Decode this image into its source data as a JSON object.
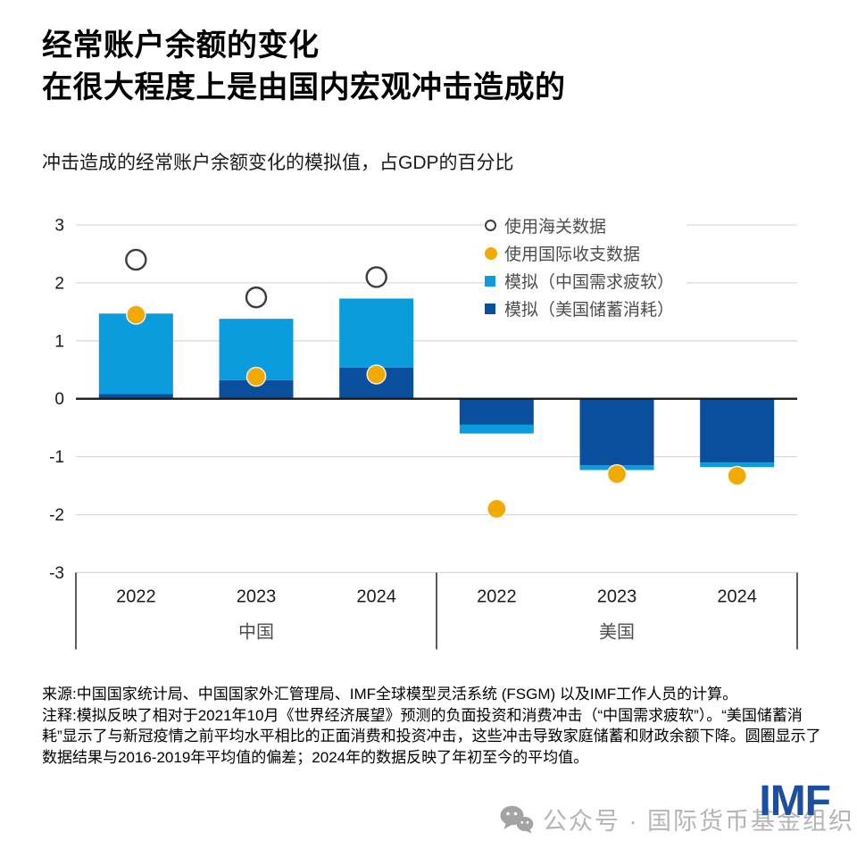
{
  "title": {
    "line1": "经常账户余额的变化",
    "line2": "在很大程度上是由国内宏观冲击造成的"
  },
  "subtitle": "冲击造成的经常账户余额变化的模拟值，占GDP的百分比",
  "legend": [
    {
      "marker": "open-circle",
      "label": "使用海关数据",
      "color": "#3c3c3c"
    },
    {
      "marker": "filled-circle",
      "label": "使用国际收支数据",
      "color": "#F2A900"
    },
    {
      "marker": "square",
      "label": "模拟（中国需求疲软）",
      "color": "#0A9CDC"
    },
    {
      "marker": "square",
      "label": "模拟（美国储蓄消耗）",
      "color": "#0A4F9E"
    }
  ],
  "chart_data": {
    "type": "bar",
    "stacked": true,
    "groups": [
      "中国",
      "美国"
    ],
    "categories": [
      "2022",
      "2023",
      "2024",
      "2022",
      "2023",
      "2024"
    ],
    "ylim": [
      -3,
      3
    ],
    "yticks": [
      "3",
      "2",
      "1",
      "0",
      "-1",
      "-2",
      "-3"
    ],
    "grid": true,
    "legend_position": "top-right",
    "series": [
      {
        "name": "模拟（美国储蓄消耗）",
        "color": "#0A4F9E",
        "values": [
          0.08,
          0.32,
          0.54,
          -0.45,
          -1.15,
          -1.1
        ]
      },
      {
        "name": "模拟（中国需求疲软）",
        "color": "#0A9CDC",
        "values": [
          1.39,
          1.06,
          1.19,
          -0.15,
          -0.08,
          -0.08
        ]
      }
    ],
    "points": [
      {
        "name": "使用海关数据",
        "style": "open-circle",
        "color": "#3c3c3c",
        "values": [
          2.4,
          1.75,
          2.1,
          null,
          null,
          null
        ]
      },
      {
        "name": "使用国际收支数据",
        "style": "filled-circle",
        "color": "#F2A900",
        "values": [
          1.45,
          0.38,
          0.42,
          -1.9,
          -1.3,
          -1.33
        ]
      }
    ]
  },
  "footer": {
    "source": "来源:中国国家统计局、中国国家外汇管理局、IMF全球模型灵活系统 (FSGM) 以及IMF工作人员的计算。",
    "note": "注释:模拟反映了相对于2021年10月《世界经济展望》预测的负面投资和消费冲击（“中国需求疲软”）。“美国储蓄消耗”显示了与新冠疫情之前平均水平相比的正面消费和投资冲击，这些冲击导致家庭储蓄和财政余额下降。圆圈显示了数据结果与2016-2019年平均值的偏差；2024年的数据反映了年初至今的平均值。"
  },
  "watermark": {
    "label": "公众号 · 国际货币基金组织",
    "logo": "IMF",
    "logo_color": "#1d4fa0"
  }
}
